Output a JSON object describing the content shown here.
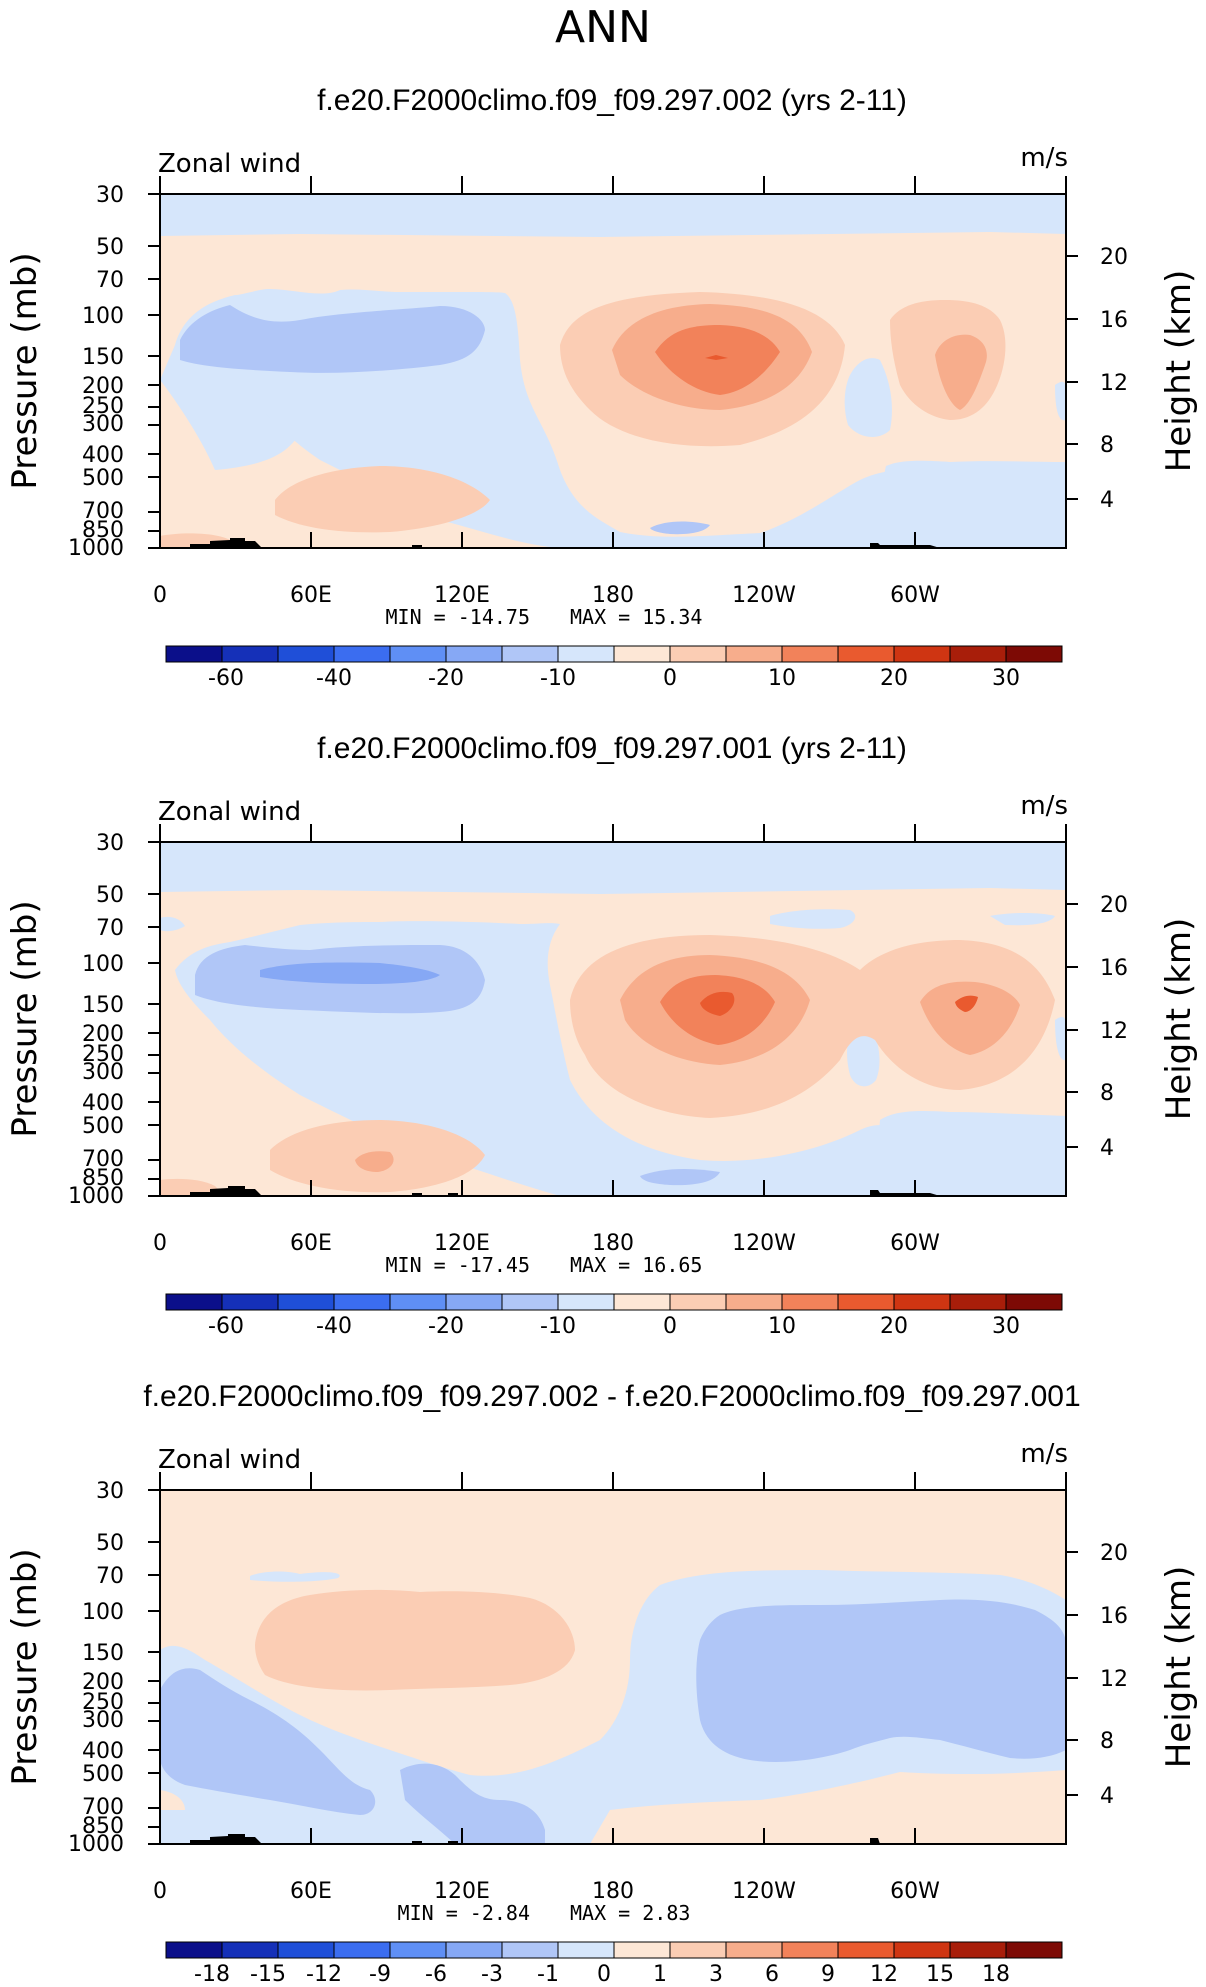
{
  "page_title": "ANN",
  "color_scales": {
    "absolute": [
      "#0b0f8a",
      "#1530b8",
      "#1f4fd8",
      "#3b6df0",
      "#5f8ff5",
      "#86a8f5",
      "#b0c6f7",
      "#d6e6fb",
      "#fde7d6",
      "#fbcdb4",
      "#f7ad8c",
      "#f2825a",
      "#e95a2f",
      "#cf3512",
      "#a81e0a",
      "#7d0a05"
    ],
    "difference": [
      "#0b0f8a",
      "#1530b8",
      "#1f4fd8",
      "#3b6df0",
      "#5f8ff5",
      "#86a8f5",
      "#b0c6f7",
      "#d6e6fb",
      "#fde7d6",
      "#fbcdb4",
      "#f7ad8c",
      "#f2825a",
      "#e95a2f",
      "#cf3512",
      "#a81e0a",
      "#7d0a05"
    ]
  },
  "chart_data": [
    {
      "type": "heatmap",
      "title": "f.e20.F2000climo.f09_f09.297.002 (yrs 2-11)",
      "variable_label": "Zonal wind",
      "units": "m/s",
      "ylabel": "Pressure (mb)",
      "ylabel_right": "Height (km)",
      "x_ticks": [
        "0",
        "60E",
        "120E",
        "180",
        "120W",
        "60W"
      ],
      "x_range": [
        0,
        360
      ],
      "y_ticks": [
        "30",
        "50",
        "70",
        "100",
        "150",
        "200",
        "250",
        "300",
        "400",
        "500",
        "700",
        "850",
        "1000"
      ],
      "y_range_mb": [
        30,
        1000
      ],
      "height_ticks": [
        "20",
        "16",
        "12",
        "8",
        "4"
      ],
      "min_label": "MIN = -14.75",
      "max_label": "MAX = 15.34",
      "colorbar_labels": [
        "-60",
        "-40",
        "-20",
        "-10",
        "0",
        "10",
        "20",
        "30"
      ],
      "features": [
        {
          "lon": 215,
          "p": 170,
          "value": 15.34
        },
        {
          "lon": 295,
          "p": 170,
          "value": 8
        },
        {
          "lon": 65,
          "p": 170,
          "value": -9
        },
        {
          "lon": 195,
          "p": 900,
          "value": -7
        },
        {
          "lon": 95,
          "p": 750,
          "value": 4
        }
      ]
    },
    {
      "type": "heatmap",
      "title": "f.e20.F2000climo.f09_f09.297.001 (yrs 2-11)",
      "variable_label": "Zonal wind",
      "units": "m/s",
      "ylabel": "Pressure (mb)",
      "ylabel_right": "Height (km)",
      "x_ticks": [
        "0",
        "60E",
        "120E",
        "180",
        "120W",
        "60W"
      ],
      "x_range": [
        0,
        360
      ],
      "y_ticks": [
        "30",
        "50",
        "70",
        "100",
        "150",
        "200",
        "250",
        "300",
        "400",
        "500",
        "700",
        "850",
        "1000"
      ],
      "y_range_mb": [
        30,
        1000
      ],
      "height_ticks": [
        "20",
        "16",
        "12",
        "8",
        "4"
      ],
      "min_label": "MIN = -17.45",
      "max_label": "MAX = 16.65",
      "colorbar_labels": [
        "-60",
        "-40",
        "-20",
        "-10",
        "0",
        "10",
        "20",
        "30"
      ],
      "features": [
        {
          "lon": 220,
          "p": 170,
          "value": 16.65
        },
        {
          "lon": 325,
          "p": 170,
          "value": 12
        },
        {
          "lon": 95,
          "p": 150,
          "value": -17.45
        },
        {
          "lon": 195,
          "p": 900,
          "value": -7
        },
        {
          "lon": 85,
          "p": 750,
          "value": 5
        }
      ]
    },
    {
      "type": "heatmap",
      "title": "f.e20.F2000climo.f09_f09.297.002 - f.e20.F2000climo.f09_f09.297.001",
      "variable_label": "Zonal wind",
      "units": "m/s",
      "ylabel": "Pressure (mb)",
      "ylabel_right": "Height (km)",
      "x_ticks": [
        "0",
        "60E",
        "120E",
        "180",
        "120W",
        "60W"
      ],
      "x_range": [
        0,
        360
      ],
      "y_ticks": [
        "30",
        "50",
        "70",
        "100",
        "150",
        "200",
        "250",
        "300",
        "400",
        "500",
        "700",
        "850",
        "1000"
      ],
      "y_range_mb": [
        30,
        1000
      ],
      "height_ticks": [
        "20",
        "16",
        "12",
        "8",
        "4"
      ],
      "min_label": "MIN = -2.84",
      "max_label": "MAX = 2.83",
      "colorbar_labels": [
        "-18",
        "-15",
        "-12",
        "-9",
        "-6",
        "-3",
        "-1",
        "0",
        "1",
        "3",
        "6",
        "9",
        "12",
        "15",
        "18"
      ],
      "features": [
        {
          "lon": 115,
          "p": 140,
          "value": 2.83
        },
        {
          "lon": 305,
          "p": 180,
          "value": -2.84
        },
        {
          "lon": 30,
          "p": 350,
          "value": -2
        },
        {
          "lon": 110,
          "p": 800,
          "value": -2
        }
      ]
    }
  ]
}
